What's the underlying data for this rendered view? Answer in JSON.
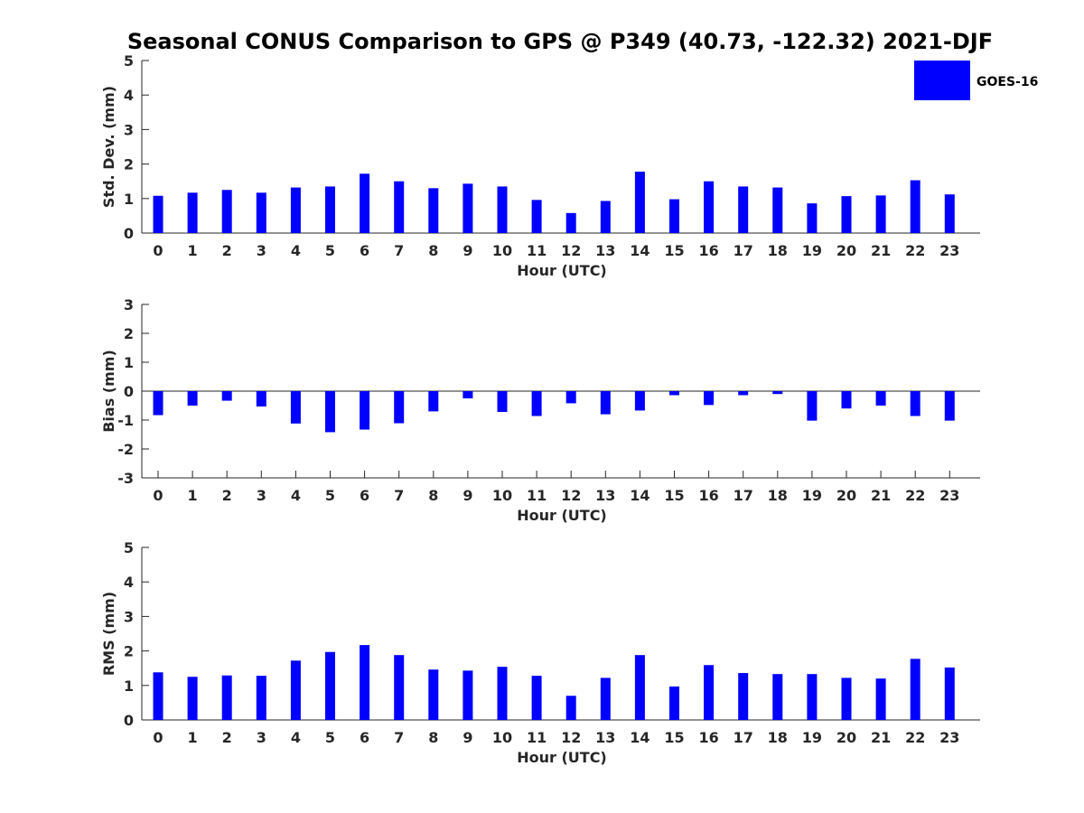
{
  "chart_data": [
    {
      "type": "bar",
      "title": "Seasonal CONUS Comparison to GPS @ P349 (40.73, -122.32) 2021-DJF",
      "xlabel": "Hour (UTC)",
      "ylabel": "Std. Dev. (mm)",
      "ylim": [
        0,
        5
      ],
      "yticks": [
        0,
        1,
        2,
        3,
        4,
        5
      ],
      "categories": [
        "0",
        "1",
        "2",
        "3",
        "4",
        "5",
        "6",
        "7",
        "8",
        "9",
        "10",
        "11",
        "12",
        "13",
        "14",
        "15",
        "16",
        "17",
        "18",
        "19",
        "20",
        "21",
        "22",
        "23"
      ],
      "series": [
        {
          "name": "GOES-16",
          "color": "#0000ff",
          "values": [
            1.08,
            1.17,
            1.25,
            1.17,
            1.32,
            1.35,
            1.72,
            1.5,
            1.3,
            1.43,
            1.35,
            0.96,
            0.58,
            0.93,
            1.78,
            0.98,
            1.5,
            1.35,
            1.32,
            0.86,
            1.07,
            1.09,
            1.53,
            1.12
          ]
        }
      ],
      "legend": {
        "position": "top-right"
      },
      "grid": false
    },
    {
      "type": "bar",
      "xlabel": "Hour (UTC)",
      "ylabel": "Bias (mm)",
      "ylim": [
        -3,
        3
      ],
      "yticks": [
        -3,
        -2,
        -1,
        0,
        1,
        2,
        3
      ],
      "categories": [
        "0",
        "1",
        "2",
        "3",
        "4",
        "5",
        "6",
        "7",
        "8",
        "9",
        "10",
        "11",
        "12",
        "13",
        "14",
        "15",
        "16",
        "17",
        "18",
        "19",
        "20",
        "21",
        "22",
        "23"
      ],
      "series": [
        {
          "name": "GOES-16",
          "color": "#0000ff",
          "values": [
            -0.83,
            -0.5,
            -0.33,
            -0.53,
            -1.12,
            -1.42,
            -1.33,
            -1.11,
            -0.7,
            -0.25,
            -0.72,
            -0.86,
            -0.42,
            -0.8,
            -0.67,
            -0.14,
            -0.48,
            -0.14,
            -0.1,
            -1.02,
            -0.6,
            -0.5,
            -0.86,
            -1.02
          ]
        }
      ],
      "grid": false
    },
    {
      "type": "bar",
      "xlabel": "Hour (UTC)",
      "ylabel": "RMS (mm)",
      "ylim": [
        0,
        5
      ],
      "yticks": [
        0,
        1,
        2,
        3,
        4,
        5
      ],
      "categories": [
        "0",
        "1",
        "2",
        "3",
        "4",
        "5",
        "6",
        "7",
        "8",
        "9",
        "10",
        "11",
        "12",
        "13",
        "14",
        "15",
        "16",
        "17",
        "18",
        "19",
        "20",
        "21",
        "22",
        "23"
      ],
      "series": [
        {
          "name": "GOES-16",
          "color": "#0000ff",
          "values": [
            1.38,
            1.25,
            1.29,
            1.28,
            1.72,
            1.97,
            2.17,
            1.88,
            1.46,
            1.43,
            1.54,
            1.28,
            0.7,
            1.22,
            1.88,
            0.97,
            1.59,
            1.36,
            1.33,
            1.33,
            1.22,
            1.2,
            1.77,
            1.52
          ]
        }
      ],
      "grid": false
    }
  ]
}
